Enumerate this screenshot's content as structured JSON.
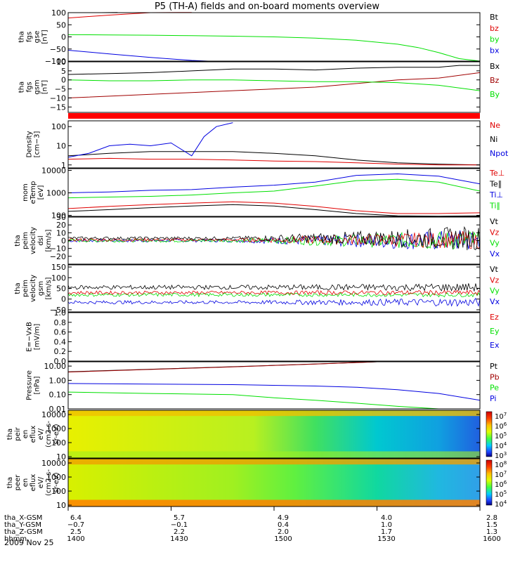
{
  "title": "P5 (TH-A) fields and on-board moments overview",
  "date_label": "2009 Nov 25",
  "colors": {
    "black": "#000000",
    "red": "#e00000",
    "green": "#00e000",
    "blue": "#0000e0",
    "darkred": "#a00000"
  },
  "chart_data": [
    {
      "type": "line",
      "name": "fgs-gse",
      "ylabel_lines": [
        "tha",
        "fgs",
        "gse",
        "[nT]"
      ],
      "ylim": [
        -100,
        100
      ],
      "yticks": [
        {
          "v": 100,
          "label": "100"
        },
        {
          "v": 50,
          "label": "50"
        },
        {
          "v": 0,
          "label": "0"
        },
        {
          "v": -50,
          "label": "−50"
        },
        {
          "v": -100,
          "label": "−100"
        }
      ],
      "legend": [
        {
          "label": "Bt",
          "color": "black"
        },
        {
          "label": "bz",
          "color": "red"
        },
        {
          "label": "by",
          "color": "green"
        },
        {
          "label": "bx",
          "color": "blue"
        }
      ],
      "series": [
        {
          "color": "black",
          "x": [
            0,
            0.08,
            0.12
          ],
          "y": [
            100,
            100,
            101
          ]
        },
        {
          "color": "red",
          "x": [
            0,
            0.1,
            0.2,
            0.3
          ],
          "y": [
            78,
            90,
            100,
            101
          ]
        },
        {
          "color": "green",
          "x": [
            0,
            0.1,
            0.2,
            0.3,
            0.4,
            0.5,
            0.6,
            0.7,
            0.8,
            0.85,
            0.9,
            0.95,
            1.0
          ],
          "y": [
            9,
            8,
            7,
            5,
            3,
            0,
            -5,
            -14,
            -30,
            -44,
            -65,
            -90,
            -100
          ]
        },
        {
          "color": "blue",
          "x": [
            0,
            0.1,
            0.2,
            0.3,
            0.35
          ],
          "y": [
            -55,
            -70,
            -85,
            -97,
            -101
          ]
        }
      ]
    },
    {
      "type": "line",
      "name": "fgs-gsm",
      "ylabel_lines": [
        "tha",
        "fgs",
        "gsm",
        "[nT]"
      ],
      "ylim": [
        -18,
        10
      ],
      "yticks": [
        {
          "v": 10,
          "label": "10"
        },
        {
          "v": 5,
          "label": "5"
        },
        {
          "v": 0,
          "label": "0"
        },
        {
          "v": -5,
          "label": "−5"
        },
        {
          "v": -10,
          "label": "−10"
        },
        {
          "v": -15,
          "label": "−15"
        }
      ],
      "legend": [
        {
          "label": "Bx",
          "color": "black"
        },
        {
          "label": "Bz",
          "color": "darkred"
        },
        {
          "label": "By",
          "color": "green"
        }
      ],
      "series": [
        {
          "color": "black",
          "x": [
            0,
            0.1,
            0.2,
            0.3,
            0.4,
            0.5,
            0.6,
            0.7,
            0.8,
            0.9,
            0.95,
            1.0
          ],
          "y": [
            3,
            3.5,
            4,
            5,
            6,
            6,
            5.5,
            6.5,
            7,
            7,
            8,
            8
          ]
        },
        {
          "color": "darkred",
          "x": [
            0,
            0.1,
            0.2,
            0.3,
            0.4,
            0.5,
            0.6,
            0.7,
            0.8,
            0.9,
            1.0
          ],
          "y": [
            -10,
            -9,
            -8,
            -7,
            -6,
            -5,
            -4,
            -2,
            0,
            1,
            4
          ]
        },
        {
          "color": "green",
          "x": [
            0,
            0.1,
            0.2,
            0.3,
            0.4,
            0.5,
            0.6,
            0.7,
            0.8,
            0.9,
            1.0
          ],
          "y": [
            0,
            -0.5,
            -0.5,
            0,
            0,
            -0.5,
            -1,
            -1,
            -1.5,
            -3,
            -6
          ]
        }
      ]
    },
    {
      "type": "line",
      "name": "density",
      "ylabel_lines": [
        "Density",
        "[cm−3]"
      ],
      "scale": "log",
      "ylim": [
        0.7,
        200
      ],
      "yticks": [
        {
          "v": 100,
          "label": "100"
        },
        {
          "v": 10,
          "label": "10"
        },
        {
          "v": 1,
          "label": "1"
        }
      ],
      "legend": [
        {
          "label": "Ne",
          "color": "red"
        },
        {
          "label": "Ni",
          "color": "black"
        },
        {
          "label": "Npot",
          "color": "blue"
        }
      ],
      "series": [
        {
          "color": "black",
          "x": [
            0,
            0.1,
            0.2,
            0.3,
            0.4,
            0.5,
            0.6,
            0.7,
            0.8,
            0.9,
            1.0
          ],
          "y": [
            3,
            4,
            5,
            5,
            5,
            4,
            3,
            1.8,
            1.3,
            1.1,
            1.0
          ]
        },
        {
          "color": "red",
          "x": [
            0,
            0.1,
            0.2,
            0.3,
            0.4,
            0.5,
            0.6,
            0.7,
            0.8,
            0.9,
            1.0
          ],
          "y": [
            2,
            2.2,
            2,
            2,
            1.8,
            1.6,
            1.5,
            1.3,
            1.1,
            1.0,
            1.0
          ]
        },
        {
          "color": "blue",
          "x": [
            0,
            0.05,
            0.1,
            0.15,
            0.2,
            0.25,
            0.3,
            0.33,
            0.36,
            0.4
          ],
          "y": [
            2.5,
            4,
            10,
            12,
            10,
            14,
            3,
            30,
            100,
            160
          ]
        }
      ]
    },
    {
      "type": "line",
      "name": "temperature",
      "ylabel_lines": [
        "mom",
        "eTemp",
        "[eV]"
      ],
      "scale": "log",
      "ylim": [
        90,
        12000
      ],
      "yticks": [
        {
          "v": 10000,
          "label": "10000"
        },
        {
          "v": 1000,
          "label": "1000"
        },
        {
          "v": 100,
          "label": "100"
        }
      ],
      "legend": [
        {
          "label": "Te⊥",
          "color": "red"
        },
        {
          "label": "Te∥",
          "color": "black"
        },
        {
          "label": "Ti⊥",
          "color": "blue"
        },
        {
          "label": "Ti∥",
          "color": "green"
        }
      ],
      "series": [
        {
          "color": "blue",
          "x": [
            0,
            0.1,
            0.2,
            0.3,
            0.4,
            0.5,
            0.6,
            0.7,
            0.8,
            0.9,
            1.0
          ],
          "y": [
            1000,
            1100,
            1300,
            1400,
            1800,
            2200,
            3000,
            6000,
            7000,
            5500,
            2500
          ]
        },
        {
          "color": "green",
          "x": [
            0,
            0.1,
            0.2,
            0.3,
            0.4,
            0.5,
            0.6,
            0.7,
            0.8,
            0.9,
            1.0
          ],
          "y": [
            600,
            650,
            700,
            800,
            1000,
            1200,
            2000,
            3500,
            4000,
            3000,
            1200
          ]
        },
        {
          "color": "red",
          "x": [
            0,
            0.1,
            0.2,
            0.3,
            0.4,
            0.5,
            0.6,
            0.7,
            0.8,
            0.9,
            1.0
          ],
          "y": [
            200,
            250,
            300,
            350,
            400,
            350,
            250,
            160,
            120,
            120,
            130
          ]
        },
        {
          "color": "black",
          "x": [
            0,
            0.1,
            0.2,
            0.3,
            0.4,
            0.5,
            0.6,
            0.7,
            0.8,
            0.9,
            1.0
          ],
          "y": [
            150,
            180,
            220,
            260,
            300,
            260,
            180,
            120,
            95,
            92,
            95
          ]
        }
      ]
    },
    {
      "type": "line",
      "name": "velocity-dsl",
      "ylabel_lines": [
        "tha",
        "peim",
        "velocity",
        "dsl",
        "[km/s]"
      ],
      "ylim": [
        -30,
        30
      ],
      "yticks": [
        {
          "v": 30,
          "label": "30"
        },
        {
          "v": 20,
          "label": "20"
        },
        {
          "v": 10,
          "label": "10"
        },
        {
          "v": 0,
          "label": "0"
        },
        {
          "v": -10,
          "label": "−10"
        },
        {
          "v": -20,
          "label": "−20"
        }
      ],
      "legend": [
        {
          "label": "Vt",
          "color": "black"
        },
        {
          "label": "Vz",
          "color": "red"
        },
        {
          "label": "Vy",
          "color": "green"
        },
        {
          "label": "Vx",
          "color": "blue"
        }
      ],
      "noise": [
        {
          "color": "blue",
          "base": 0,
          "amp0": 2,
          "amp1": 15
        },
        {
          "color": "green",
          "base": 0,
          "amp0": 2,
          "amp1": 14
        },
        {
          "color": "red",
          "base": 1,
          "amp0": 2,
          "amp1": 12
        },
        {
          "color": "black",
          "base": 3,
          "amp0": 2,
          "amp1": 16
        }
      ]
    },
    {
      "type": "line",
      "name": "velocity-gsm",
      "ylabel_lines": [
        "tha",
        "peim",
        "velocity",
        "gsm",
        "[km/s]"
      ],
      "ylim": [
        -60,
        160
      ],
      "yticks": [
        {
          "v": 150,
          "label": "150"
        },
        {
          "v": 100,
          "label": "100"
        },
        {
          "v": 50,
          "label": "50"
        },
        {
          "v": 0,
          "label": "0"
        },
        {
          "v": -50,
          "label": "−50"
        }
      ],
      "legend": [
        {
          "label": "Vt",
          "color": "black"
        },
        {
          "label": "Vz",
          "color": "red"
        },
        {
          "label": "Vy",
          "color": "green"
        },
        {
          "label": "Vx",
          "color": "blue"
        }
      ],
      "noise": [
        {
          "color": "blue",
          "base": -15,
          "amp0": 8,
          "amp1": 20
        },
        {
          "color": "green",
          "base": 20,
          "amp0": 8,
          "amp1": 10
        },
        {
          "color": "red",
          "base": 30,
          "amp0": 8,
          "amp1": 12
        },
        {
          "color": "black",
          "base": 55,
          "amp0": 10,
          "amp1": 20
        }
      ]
    },
    {
      "type": "line",
      "name": "e-vxb",
      "ylabel_lines": [
        "E=−VxB",
        "[mV/m]"
      ],
      "ylim": [
        0,
        1
      ],
      "yticks": [
        {
          "v": 1.0,
          "label": "1.0"
        },
        {
          "v": 0.8,
          "label": "0.8"
        },
        {
          "v": 0.6,
          "label": "0.6"
        },
        {
          "v": 0.4,
          "label": "0.4"
        },
        {
          "v": 0.2,
          "label": "0.2"
        },
        {
          "v": 0.0,
          "label": "0.0"
        }
      ],
      "legend": [
        {
          "label": "Ez",
          "color": "red"
        },
        {
          "label": "Ey",
          "color": "green"
        },
        {
          "label": "Ex",
          "color": "blue"
        }
      ],
      "series": []
    },
    {
      "type": "line",
      "name": "pressure",
      "ylabel_lines": [
        "Pressure",
        "[nPa]"
      ],
      "scale": "log",
      "ylim": [
        0.01,
        20
      ],
      "yticks": [
        {
          "v": 10,
          "label": "10.00"
        },
        {
          "v": 1,
          "label": "1.00"
        },
        {
          "v": 0.1,
          "label": "0.10"
        },
        {
          "v": 0.01,
          "label": "0.01"
        }
      ],
      "legend": [
        {
          "label": "Pt",
          "color": "black"
        },
        {
          "label": "Pb",
          "color": "darkred"
        },
        {
          "label": "Pe",
          "color": "green"
        },
        {
          "label": "Pi",
          "color": "blue"
        }
      ],
      "series": [
        {
          "color": "black",
          "x": [
            0,
            0.2,
            0.4,
            0.6,
            0.75
          ],
          "y": [
            4,
            6,
            9,
            14,
            20
          ]
        },
        {
          "color": "darkred",
          "x": [
            0,
            0.2,
            0.4,
            0.6,
            0.75
          ],
          "y": [
            3.8,
            5.8,
            8.8,
            13.8,
            20
          ]
        },
        {
          "color": "blue",
          "x": [
            0,
            0.2,
            0.4,
            0.6,
            0.7,
            0.8,
            0.9,
            1.0
          ],
          "y": [
            0.6,
            0.55,
            0.5,
            0.4,
            0.33,
            0.22,
            0.12,
            0.04
          ]
        },
        {
          "color": "green",
          "x": [
            0,
            0.2,
            0.4,
            0.5,
            0.6,
            0.7,
            0.8,
            0.9
          ],
          "y": [
            0.15,
            0.12,
            0.1,
            0.06,
            0.04,
            0.025,
            0.015,
            0.01
          ]
        }
      ]
    },
    {
      "type": "heatmap",
      "name": "peir-en-eflux",
      "ylabel_lines": [
        "tha",
        "peir",
        "en",
        "eflux",
        "eV/",
        "(cm2-s-",
        "sr-eV)"
      ],
      "scale": "log",
      "ylim": [
        8,
        20000
      ],
      "yticks": [
        {
          "v": 10000,
          "label": "10000"
        },
        {
          "v": 1000,
          "label": "1000"
        },
        {
          "v": 100,
          "label": "100"
        },
        {
          "v": 10,
          "label": "10"
        }
      ],
      "colorbar": {
        "labels": [
          "10^7",
          "10^6",
          "10^5",
          "10^4",
          "10^3"
        ]
      }
    },
    {
      "type": "heatmap",
      "name": "peer-en-eflux",
      "ylabel_lines": [
        "tha",
        "peer",
        "en",
        "eflux",
        "eV/",
        "(cm2-s-",
        "sr-eV)"
      ],
      "scale": "log",
      "ylim": [
        8,
        20000
      ],
      "yticks": [
        {
          "v": 10000,
          "label": "10000"
        },
        {
          "v": 1000,
          "label": "1000"
        },
        {
          "v": 100,
          "label": "100"
        },
        {
          "v": 10,
          "label": "10"
        }
      ],
      "colorbar": {
        "labels": [
          "10^8",
          "10^7",
          "10^6",
          "10^5",
          "10^4"
        ]
      }
    }
  ],
  "xaxis": {
    "rows": [
      {
        "label": "tha_X-GSM",
        "values": [
          "6.4",
          "5.7",
          "4.9",
          "4.0",
          "2.8"
        ]
      },
      {
        "label": "tha_Y-GSM",
        "values": [
          "−0.7",
          "−0.1",
          "0.4",
          "1.0",
          "1.5"
        ]
      },
      {
        "label": "tha_Z-GSM",
        "values": [
          "2.5",
          "2.2",
          "2.0",
          "1.7",
          "1.3"
        ]
      },
      {
        "label": "hhmm",
        "values": [
          "1400",
          "1430",
          "1500",
          "1530",
          "1600"
        ]
      }
    ]
  }
}
